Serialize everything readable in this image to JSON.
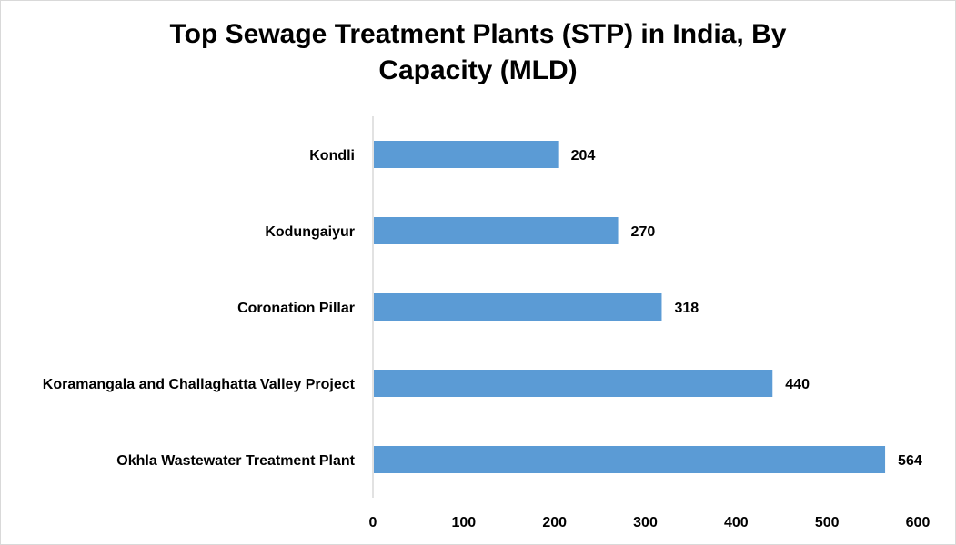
{
  "chart_data": {
    "type": "bar",
    "orientation": "horizontal",
    "title_line1": "Top Sewage Treatment Plants (STP) in India, By",
    "title_line2": "Capacity (MLD)",
    "categories": [
      "Kondli",
      "Kodungaiyur",
      "Coronation Pillar",
      "Koramangala and Challaghatta Valley Project",
      "Okhla Wastewater Treatment Plant"
    ],
    "values": [
      204,
      270,
      318,
      440,
      564
    ],
    "value_labels": [
      "204",
      "270",
      "318",
      "440",
      "564"
    ],
    "xlim": [
      0,
      600
    ],
    "x_ticks": [
      "0",
      "100",
      "200",
      "300",
      "400",
      "500",
      "600"
    ],
    "bar_color": "#5b9bd5",
    "grid": false,
    "legend": "none"
  }
}
